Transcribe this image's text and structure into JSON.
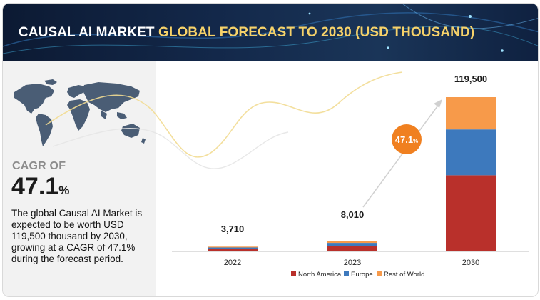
{
  "header": {
    "title_prefix": "CAUSAL AI MARKET",
    "title_highlight": "GLOBAL FORECAST TO 2030 (USD THOUSAND)"
  },
  "left_panel": {
    "cagr_label": "CAGR OF",
    "cagr_value": "47.1",
    "cagr_unit": "%",
    "description": "The global Causal AI Market is expected to be worth USD 119,500 thousand by 2030, growing at a CAGR of 47.1% during the forecast period."
  },
  "colors": {
    "north_america": "#b9302b",
    "europe": "#3d79bd",
    "rest_of_world": "#f79a4a",
    "cagr_bubble": "#f08020"
  },
  "chart_data": {
    "type": "bar",
    "stacked": true,
    "title": "Causal AI Market Global Forecast to 2030 (USD Thousand)",
    "categories": [
      "2022",
      "2023",
      "2030"
    ],
    "series": [
      {
        "name": "North America",
        "values": [
          1900,
          4100,
          59000
        ]
      },
      {
        "name": "Europe",
        "values": [
          1150,
          2500,
          35500
        ]
      },
      {
        "name": "Rest of World",
        "values": [
          660,
          1410,
          25000
        ]
      }
    ],
    "totals": [
      3710,
      8010,
      119500
    ],
    "total_labels": [
      "3,710",
      "8,010",
      "119,500"
    ],
    "cagr_bubble": {
      "value": "47.1",
      "unit": "%"
    },
    "legend": [
      "North America",
      "Europe",
      "Rest of World"
    ],
    "legend_position": "bottom",
    "xlabel": "",
    "ylabel": "",
    "ylim": [
      0,
      119500
    ]
  }
}
